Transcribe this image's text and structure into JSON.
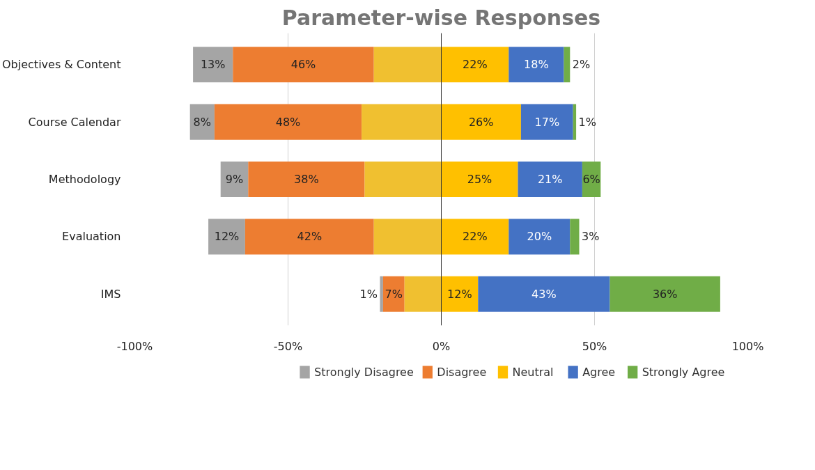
{
  "chart_data": {
    "type": "bar",
    "orientation": "horizontal",
    "title": "Parameter-wise Responses",
    "categories": [
      "Objectives & Content",
      "Course Calendar",
      "Methodology",
      "Evaluation",
      "IMS"
    ],
    "series": [
      {
        "name": "Strongly Disagree",
        "color": "#a5a5a5",
        "base": [
          -81,
          -82,
          -72,
          -76,
          -20
        ],
        "values": [
          13,
          8,
          9,
          12,
          1
        ],
        "value_labels": [
          "13%",
          "8%",
          "9%",
          "12%",
          "1%"
        ]
      },
      {
        "name": "Disagree",
        "color": "#ed7d31",
        "base": [
          -68,
          -74,
          -63,
          -64,
          -19
        ],
        "values": [
          46,
          48,
          38,
          42,
          7
        ],
        "value_labels": [
          "46%",
          "48%",
          "38%",
          "42%",
          "7%"
        ]
      },
      {
        "color": "#f0c030",
        "base": [
          -22,
          -26,
          -25,
          -22,
          -12
        ],
        "values": [
          22,
          26,
          25,
          22,
          12
        ],
        "value_labels": [
          null,
          null,
          null,
          null,
          null
        ]
      },
      {
        "name": "Neutral",
        "color": "#ffc000",
        "base": [
          0,
          0,
          0,
          0,
          0
        ],
        "values": [
          22,
          26,
          25,
          22,
          12
        ],
        "value_labels": [
          "22%",
          "26%",
          "25%",
          "22%",
          "12%"
        ]
      },
      {
        "name": "Agree",
        "color": "#4472c4",
        "base": [
          22,
          26,
          25,
          22,
          12
        ],
        "values": [
          18,
          17,
          21,
          20,
          43
        ],
        "value_labels": [
          "18%",
          "17%",
          "21%",
          "20%",
          "43%"
        ]
      },
      {
        "name": "Strongly Agree",
        "color": "#70ad47",
        "base": [
          40,
          43,
          46,
          42,
          55
        ],
        "values": [
          2,
          1,
          6,
          3,
          36
        ],
        "value_labels": [
          "2%",
          "1%",
          "6%",
          "3%",
          "36%"
        ]
      }
    ],
    "xlim": [
      -100,
      100
    ],
    "xticks": [
      {
        "value": -100,
        "label": "-100%"
      },
      {
        "value": -50,
        "label": "-50%"
      },
      {
        "value": 0,
        "label": "0%"
      },
      {
        "value": 50,
        "label": "50%"
      },
      {
        "value": 100,
        "label": "100%"
      }
    ],
    "grid": "x",
    "legend": "bottom"
  }
}
